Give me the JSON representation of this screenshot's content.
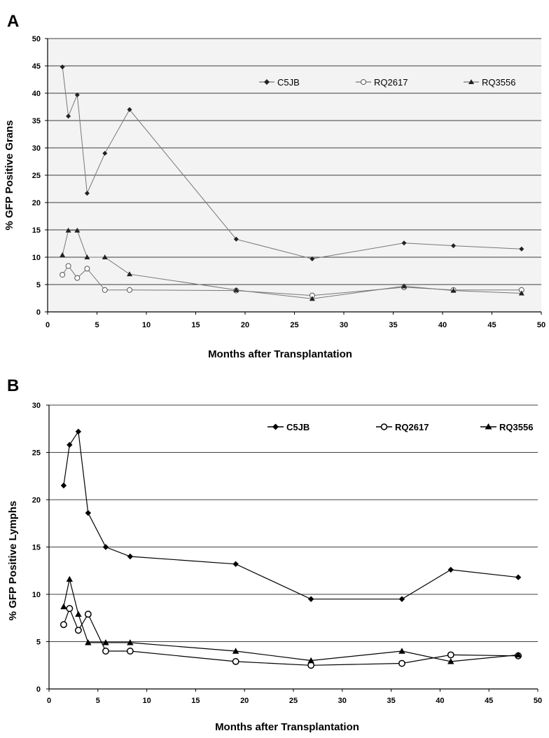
{
  "chart_data": [
    {
      "panel": "A",
      "type": "line",
      "xlabel": "Months after Transplantation",
      "ylabel": "% GFP Positive Grans",
      "xlim": [
        0,
        50
      ],
      "ylim": [
        0,
        50
      ],
      "xticks": [
        "0",
        "5",
        "10",
        "15",
        "20",
        "25",
        "30",
        "35",
        "40",
        "45",
        "50"
      ],
      "yticks": [
        "0",
        "5",
        "10",
        "15",
        "20",
        "25",
        "30",
        "35",
        "40",
        "45",
        "50"
      ],
      "grid": "horizontal",
      "legend_position": "top-right",
      "series": [
        {
          "name": "C5JB",
          "marker": "diamond",
          "filled": true,
          "x": [
            1.5,
            2.1,
            3.0,
            4.0,
            5.8,
            8.3,
            19.1,
            26.8,
            36.1,
            41.1,
            48.0
          ],
          "y": [
            44.8,
            35.8,
            39.7,
            21.7,
            29.0,
            37.0,
            13.3,
            9.7,
            12.6,
            12.1,
            11.5
          ]
        },
        {
          "name": "RQ2617",
          "marker": "circle",
          "filled": false,
          "x": [
            1.5,
            2.1,
            3.0,
            4.0,
            5.8,
            8.3,
            19.1,
            26.8,
            36.1,
            41.1,
            48.0
          ],
          "y": [
            6.8,
            8.4,
            6.2,
            7.9,
            4.0,
            4.0,
            3.9,
            3.0,
            4.5,
            4.0,
            4.0
          ]
        },
        {
          "name": "RQ3556",
          "marker": "triangle",
          "filled": true,
          "x": [
            1.5,
            2.1,
            3.0,
            4.0,
            5.8,
            8.3,
            19.1,
            26.8,
            36.1,
            41.1,
            48.0
          ],
          "y": [
            10.4,
            14.9,
            14.9,
            10.0,
            10.0,
            6.9,
            4.0,
            2.4,
            4.7,
            3.9,
            3.4
          ]
        }
      ]
    },
    {
      "panel": "B",
      "type": "line",
      "xlabel": "Months after Transplantation",
      "ylabel": "% GFP Positive Lymphs",
      "xlim": [
        0,
        50
      ],
      "ylim": [
        0,
        30
      ],
      "xticks": [
        "0",
        "5",
        "10",
        "15",
        "20",
        "25",
        "30",
        "35",
        "40",
        "45",
        "50"
      ],
      "yticks": [
        "0",
        "5",
        "10",
        "15",
        "20",
        "25",
        "30"
      ],
      "grid": "horizontal",
      "legend_position": "top-right",
      "series": [
        {
          "name": "C5JB",
          "marker": "diamond",
          "filled": true,
          "x": [
            1.5,
            2.1,
            3.0,
            4.0,
            5.8,
            8.3,
            19.1,
            26.8,
            36.1,
            41.1,
            48.0
          ],
          "y": [
            21.5,
            25.8,
            27.2,
            18.6,
            15.0,
            14.0,
            13.2,
            9.5,
            9.5,
            12.6,
            11.8
          ]
        },
        {
          "name": "RQ2617",
          "marker": "circle",
          "filled": false,
          "x": [
            1.5,
            2.1,
            3.0,
            4.0,
            5.8,
            8.3,
            19.1,
            26.8,
            36.1,
            41.1,
            48.0
          ],
          "y": [
            6.8,
            8.5,
            6.2,
            7.9,
            4.0,
            4.0,
            2.9,
            2.5,
            2.7,
            3.6,
            3.5
          ]
        },
        {
          "name": "RQ3556",
          "marker": "triangle",
          "filled": true,
          "x": [
            1.5,
            2.1,
            3.0,
            4.0,
            5.8,
            8.3,
            19.1,
            26.8,
            36.1,
            41.1,
            48.0
          ],
          "y": [
            8.7,
            11.6,
            7.9,
            4.9,
            4.9,
            4.9,
            4.0,
            3.0,
            4.0,
            2.9,
            3.6
          ]
        }
      ]
    }
  ]
}
